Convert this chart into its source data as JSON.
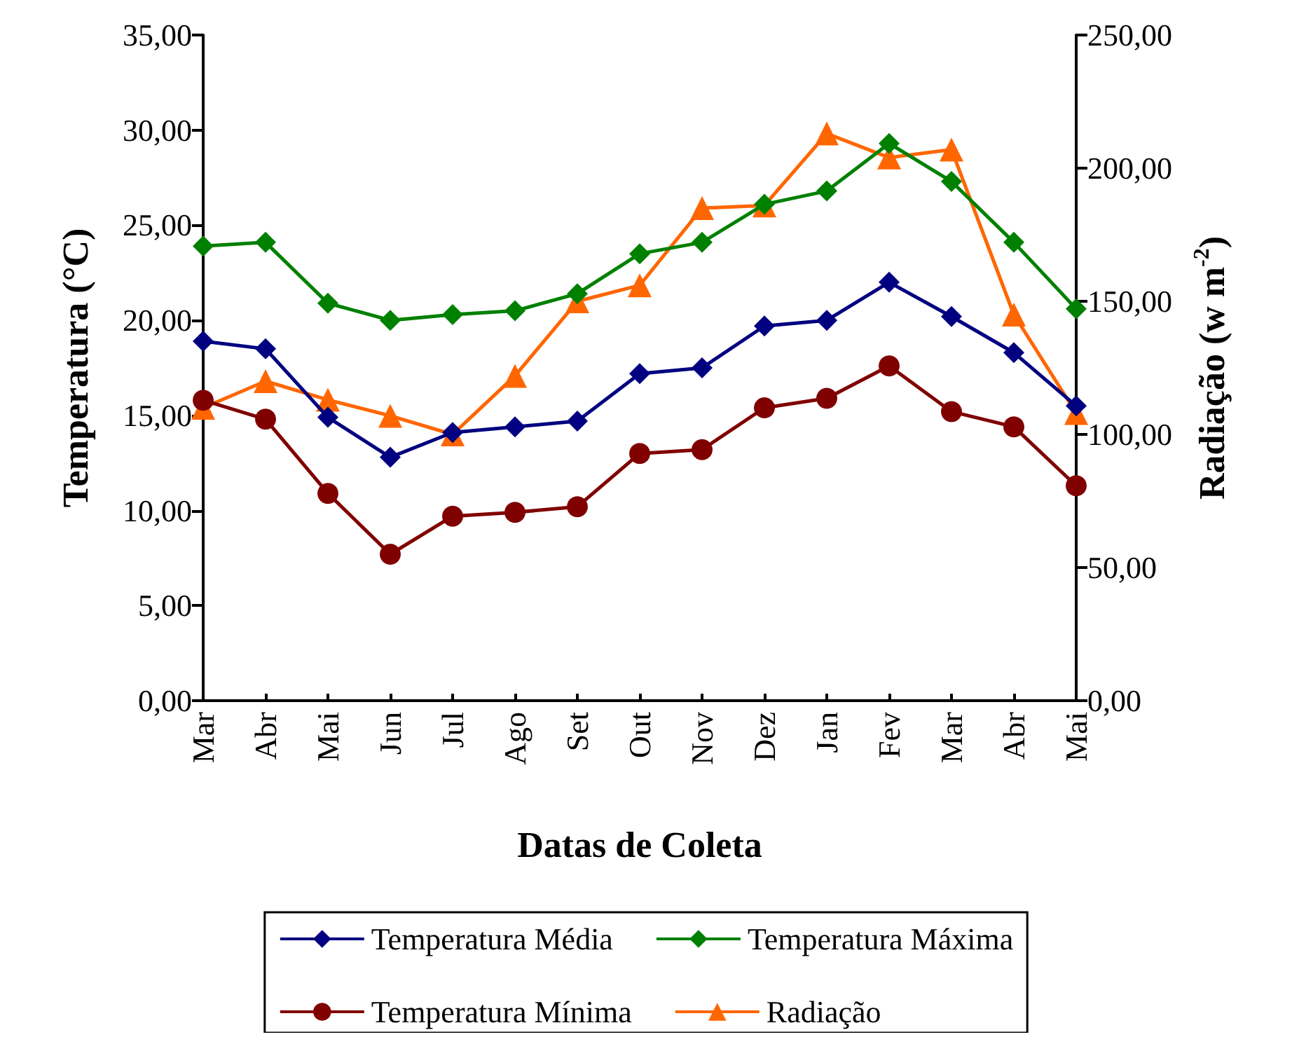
{
  "chart_data": {
    "type": "line",
    "xlabel": "Datas de Coleta",
    "ylabel": "Temperatura (°C)",
    "y2label": "Radiação (w m$^{-2}$)",
    "categories": [
      "Mar",
      "Abr",
      "Mai",
      "Jun",
      "Jul",
      "Ago",
      "Set",
      "Out",
      "Nov",
      "Dez",
      "Jan",
      "Fev",
      "Mar",
      "Abr",
      "Mai"
    ],
    "series": [
      {
        "name": "Temperatura Média",
        "color": "#000080",
        "marker": "diamond",
        "values": [
          18.9,
          18.5,
          14.9,
          12.8,
          14.1,
          14.4,
          14.7,
          17.2,
          17.5,
          19.7,
          20.0,
          22.0,
          20.2,
          18.3,
          15.5
        ]
      },
      {
        "name": "Temperatura Máxima",
        "color": "#008000",
        "marker": "diamond",
        "values": [
          23.9,
          24.1,
          20.9,
          20.0,
          20.3,
          20.5,
          21.4,
          23.5,
          24.1,
          26.1,
          26.8,
          29.3,
          27.3,
          24.1,
          20.6
        ]
      },
      {
        "name": "Temperatura Mínima",
        "color": "#800000",
        "marker": "circle",
        "values": [
          15.8,
          14.8,
          10.9,
          7.7,
          9.7,
          9.9,
          10.2,
          13.0,
          13.2,
          15.4,
          15.9,
          17.6,
          15.2,
          14.4,
          11.3
        ]
      },
      {
        "name": "Radiação",
        "color": "#ff6600",
        "marker": "triangle",
        "axis": "y2",
        "values": [
          110,
          120,
          113,
          107,
          100,
          122,
          150,
          156,
          185,
          186,
          213,
          204,
          207,
          145,
          108
        ]
      }
    ],
    "ylim": [
      0,
      35
    ],
    "yticks": [
      {
        "value": 0,
        "label": "0,00"
      },
      {
        "value": 5,
        "label": "5,00"
      },
      {
        "value": 10,
        "label": "10,00"
      },
      {
        "value": 15,
        "label": "15,00"
      },
      {
        "value": 20,
        "label": "20,00"
      },
      {
        "value": 25,
        "label": "25,00"
      },
      {
        "value": 30,
        "label": "30,00"
      },
      {
        "value": 35,
        "label": "35,00"
      }
    ],
    "y2lim": [
      0,
      250
    ],
    "y2ticks": [
      {
        "value": 0,
        "label": "0,00"
      },
      {
        "value": 50,
        "label": "50,00"
      },
      {
        "value": 100,
        "label": "100,00"
      },
      {
        "value": 150,
        "label": "150,00"
      },
      {
        "value": 200,
        "label": "200,00"
      },
      {
        "value": 250,
        "label": "250,00"
      }
    ],
    "grid": false,
    "legend": "bottom",
    "line_style": "solid"
  }
}
